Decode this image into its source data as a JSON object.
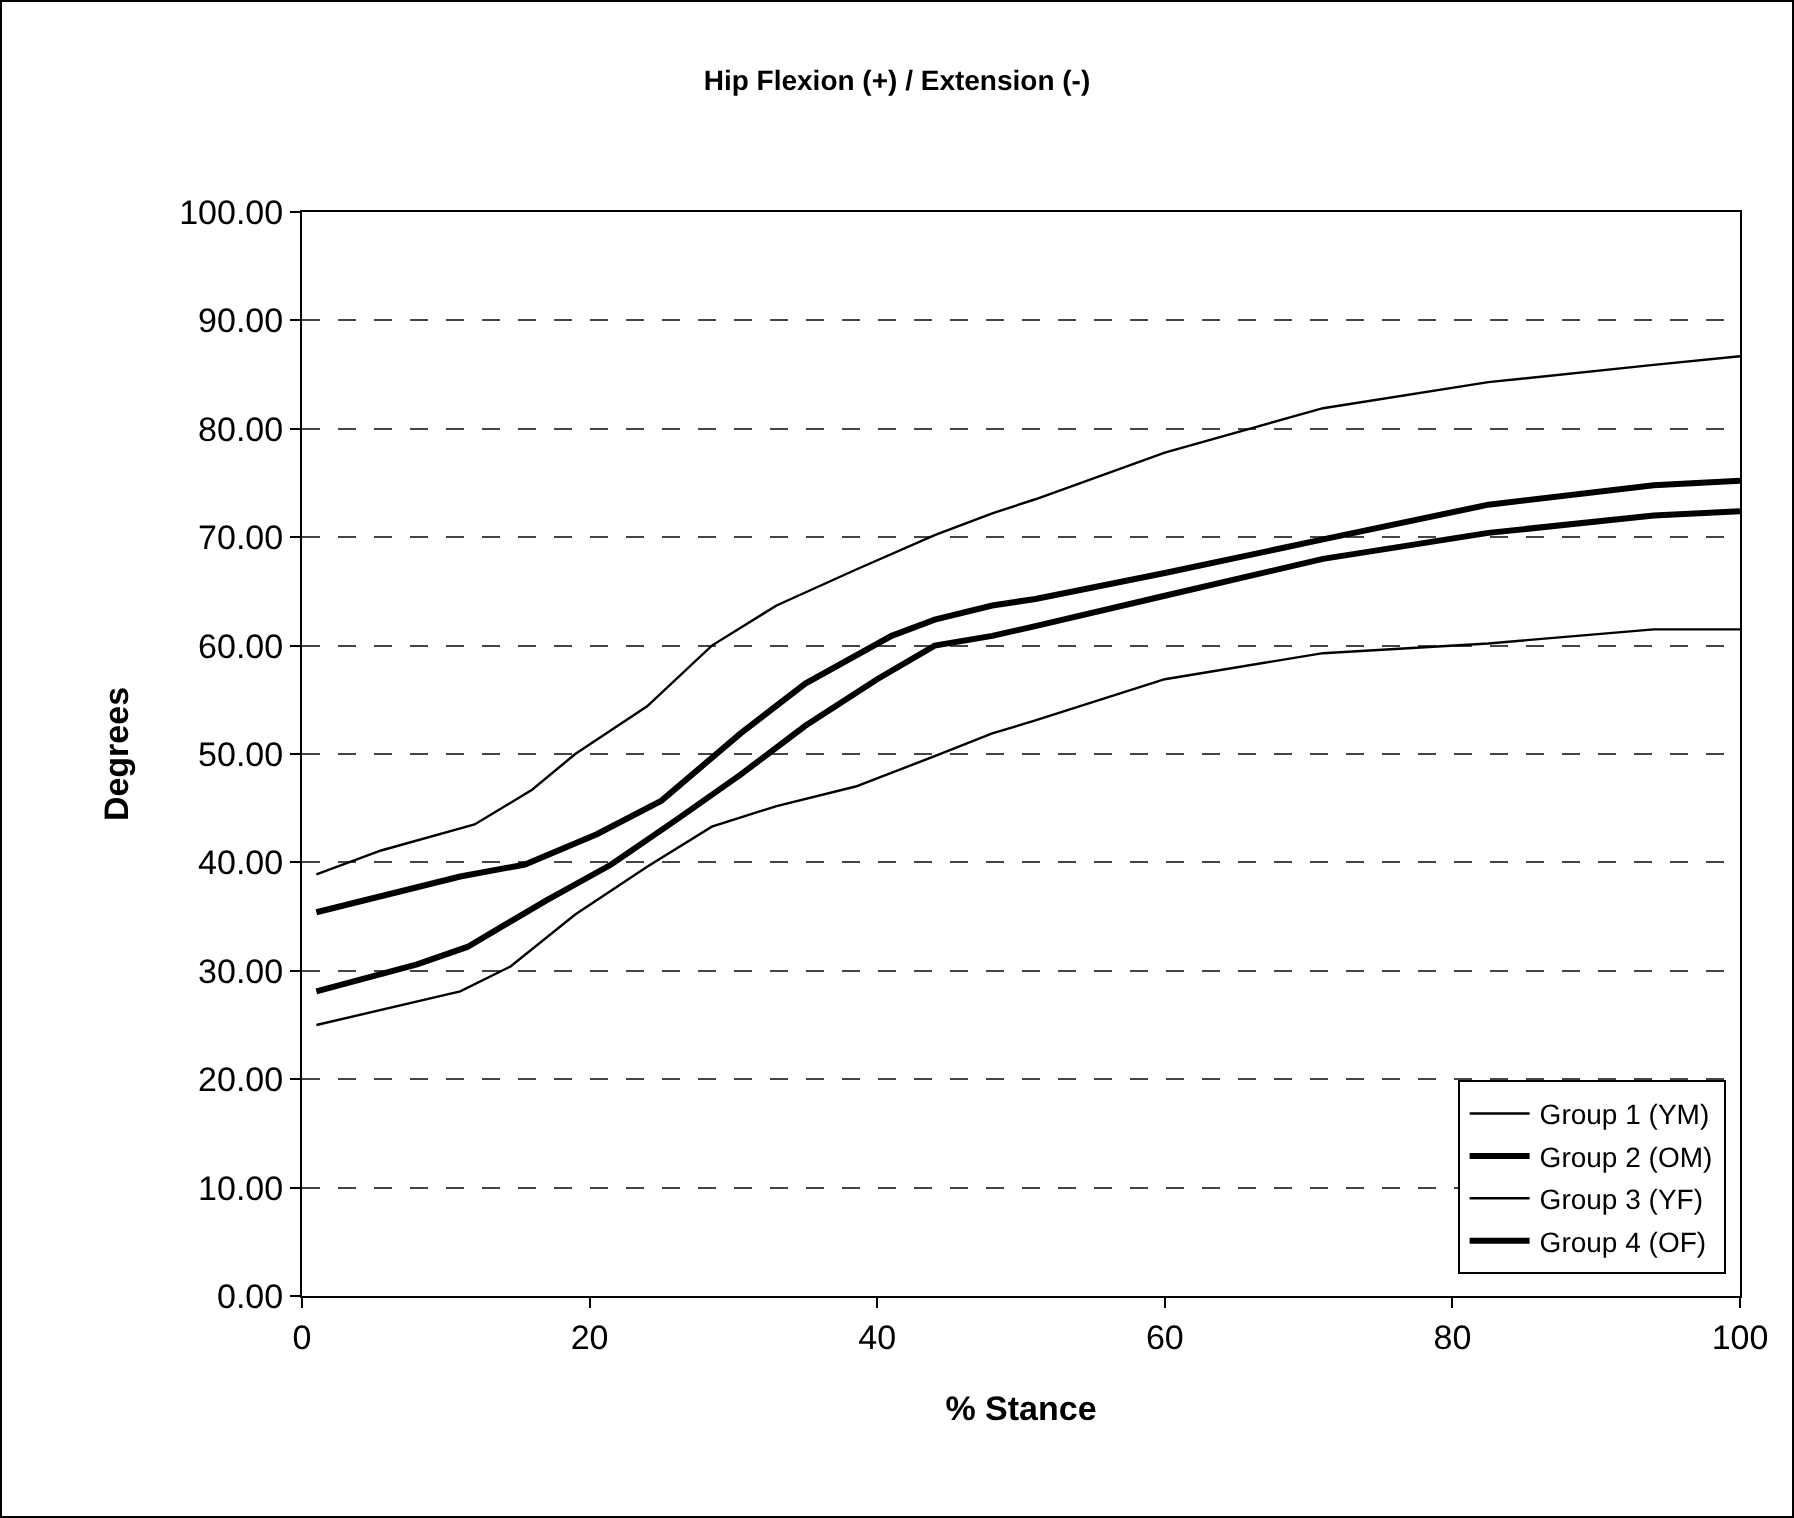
{
  "chart_data": {
    "type": "line",
    "title": "Hip Flexion (+) / Extension (-)",
    "xlabel": "% Stance",
    "ylabel": "Degrees",
    "xlim": [
      0,
      100
    ],
    "xticks": [
      0,
      20,
      40,
      60,
      80,
      100
    ],
    "ylim": [
      0,
      100
    ],
    "yticks": [
      {
        "value": 0,
        "label": "0.00"
      },
      {
        "value": 10,
        "label": "10.00"
      },
      {
        "value": 20,
        "label": "20.00"
      },
      {
        "value": 30,
        "label": "30.00"
      },
      {
        "value": 40,
        "label": "40.00"
      },
      {
        "value": 50,
        "label": "50.00"
      },
      {
        "value": 60,
        "label": "60.00"
      },
      {
        "value": 70,
        "label": "70.00"
      },
      {
        "value": 80,
        "label": "80.00"
      },
      {
        "value": 90,
        "label": "90.00"
      },
      {
        "value": 100,
        "label": "100.00"
      }
    ],
    "grid": "y",
    "legend": "bottom right",
    "marker": "none",
    "line_style": "solid",
    "series": [
      {
        "name": "Group 1 (YM)",
        "color": "#000000",
        "x": [
          1,
          5.5,
          12,
          16,
          19,
          24,
          28.5,
          33,
          38.5,
          44,
          48,
          51,
          60,
          71,
          82.5,
          94,
          100
        ],
        "values": [
          38.9,
          41.1,
          43.5,
          46.7,
          50,
          54.4,
          60,
          63.7,
          67,
          70.2,
          72.2,
          73.5,
          77.8,
          81.9,
          84.3,
          85.9,
          86.7
        ]
      },
      {
        "name": "Group 2 (OM)",
        "color": "#000000",
        "x": [
          1,
          11,
          15.5,
          20.5,
          25,
          30.5,
          35,
          41,
          44,
          48,
          51,
          60,
          71,
          82.5,
          94,
          100
        ],
        "values": [
          35.4,
          38.7,
          39.8,
          42.6,
          45.7,
          51.9,
          56.5,
          60.9,
          62.4,
          63.7,
          64.3,
          66.7,
          69.8,
          73,
          74.8,
          75.2
        ]
      },
      {
        "name": "Group 3 (YF)",
        "color": "#000000",
        "x": [
          1,
          11,
          14.5,
          19,
          24,
          28.5,
          33,
          38.5,
          44,
          48,
          51,
          60,
          71,
          82.5,
          94,
          100
        ],
        "values": [
          25,
          28.1,
          30.4,
          35.2,
          39.6,
          43.3,
          45.2,
          47,
          49.8,
          51.9,
          53.1,
          56.9,
          59.3,
          60.2,
          61.5,
          61.5
        ]
      },
      {
        "name": "Group 4 (OF)",
        "color": "#000000",
        "x": [
          1,
          8,
          11.5,
          17,
          21.5,
          26,
          30.5,
          35,
          40,
          44,
          48,
          51,
          60,
          71,
          82.5,
          94,
          100
        ],
        "values": [
          28.1,
          30.6,
          32.2,
          36.5,
          39.8,
          43.9,
          48.1,
          52.6,
          56.9,
          60,
          60.9,
          61.8,
          64.6,
          68,
          70.4,
          72,
          72.4
        ]
      }
    ]
  }
}
